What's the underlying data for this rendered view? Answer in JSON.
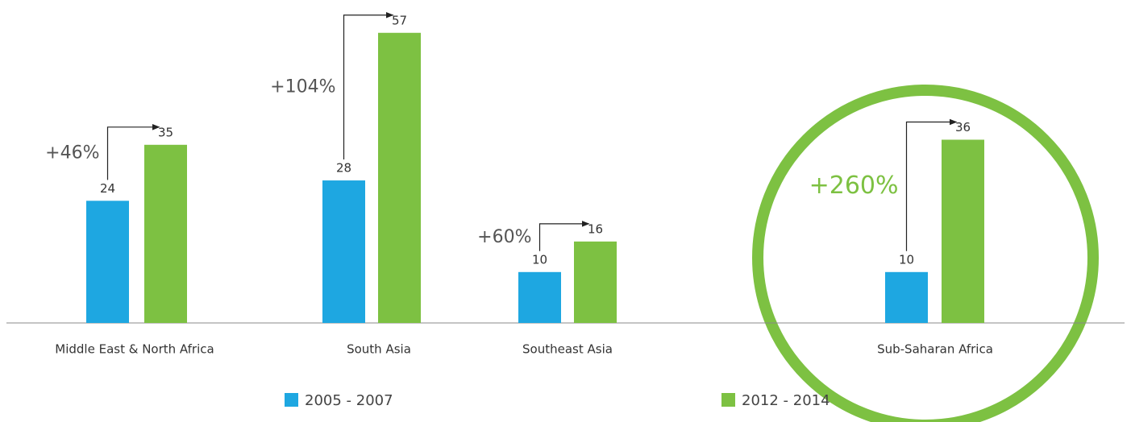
{
  "chart_data": {
    "type": "bar",
    "categories": [
      "Middle East & North Africa",
      "South Asia",
      "Southeast Asia",
      "Sub-Saharan Africa"
    ],
    "series": [
      {
        "name": "2005 - 2007",
        "color": "#1ea7e1",
        "values": [
          24,
          28,
          10,
          10
        ]
      },
      {
        "name": "2012 - 2014",
        "color": "#7dc142",
        "values": [
          35,
          57,
          16,
          36
        ]
      }
    ],
    "annotations": [
      "+46%",
      "+104%",
      "+60%",
      "+260%"
    ]
  }
}
